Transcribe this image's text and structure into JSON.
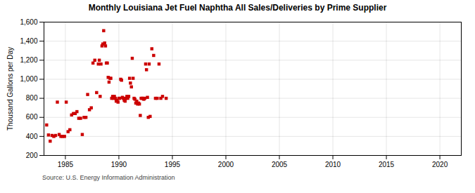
{
  "chart_data": {
    "type": "scatter",
    "title": "Monthly Louisiana Jet Fuel Naphtha All Sales/Deliveries by Prime Supplier",
    "ylabel": "Thousand Gallons per Day",
    "caption": "Source: U.S. Energy Information Administration",
    "color": "#cc0000",
    "marker": "square",
    "grid": true,
    "xlim": [
      1983,
      2022
    ],
    "ylim": [
      200,
      1600
    ],
    "xticks": [
      1985,
      1990,
      1995,
      2000,
      2005,
      2010,
      2015,
      2020
    ],
    "yticks": [
      200,
      400,
      600,
      800,
      {
        "value": 1000,
        "label": "1,000"
      },
      {
        "value": 1200,
        "label": "1,200"
      },
      {
        "value": 1400,
        "label": "1,400"
      },
      {
        "value": 1600,
        "label": "1,600"
      }
    ],
    "x": [
      1983.25,
      1983.42,
      1983.58,
      1983.75,
      1983.92,
      1984.08,
      1984.25,
      1984.42,
      1984.58,
      1984.75,
      1984.92,
      1985.08,
      1985.25,
      1985.42,
      1985.58,
      1985.75,
      1985.92,
      1986.08,
      1986.25,
      1986.42,
      1986.58,
      1986.75,
      1986.92,
      1987.08,
      1987.25,
      1987.42,
      1987.58,
      1987.75,
      1987.92,
      1988.08,
      1988.17,
      1988.25,
      1988.33,
      1988.42,
      1988.5,
      1988.58,
      1988.67,
      1988.75,
      1988.83,
      1988.92,
      1989.0,
      1989.08,
      1989.17,
      1989.25,
      1989.33,
      1989.42,
      1989.5,
      1989.58,
      1989.67,
      1989.75,
      1989.83,
      1989.92,
      1990.0,
      1990.08,
      1990.17,
      1990.25,
      1990.33,
      1990.42,
      1990.5,
      1990.58,
      1990.67,
      1990.75,
      1990.83,
      1990.92,
      1991.0,
      1991.08,
      1991.17,
      1991.25,
      1991.33,
      1991.42,
      1991.5,
      1991.58,
      1991.67,
      1991.75,
      1991.83,
      1991.92,
      1992.0,
      1992.08,
      1992.17,
      1992.25,
      1992.33,
      1992.42,
      1992.5,
      1992.58,
      1992.67,
      1992.75,
      1992.83,
      1992.92,
      1993.08,
      1993.25,
      1993.42,
      1993.58,
      1993.75,
      1993.92,
      1994.08,
      1994.42
    ],
    "values": [
      520,
      415,
      350,
      410,
      400,
      410,
      760,
      420,
      400,
      400,
      400,
      760,
      450,
      470,
      625,
      640,
      640,
      660,
      590,
      590,
      420,
      600,
      600,
      840,
      680,
      700,
      1170,
      1200,
      860,
      1160,
      1200,
      820,
      1160,
      1350,
      1370,
      1510,
      1380,
      1350,
      1170,
      1170,
      1020,
      970,
      1010,
      1010,
      800,
      820,
      800,
      820,
      800,
      770,
      780,
      760,
      800,
      800,
      1000,
      990,
      810,
      800,
      780,
      770,
      800,
      820,
      800,
      820,
      1010,
      960,
      920,
      1220,
      1010,
      800,
      790,
      750,
      770,
      740,
      750,
      740,
      620,
      800,
      800,
      800,
      790,
      800,
      1160,
      1100,
      810,
      600,
      1160,
      610,
      1320,
      1250,
      800,
      800,
      1160,
      800,
      820,
      800
    ]
  }
}
